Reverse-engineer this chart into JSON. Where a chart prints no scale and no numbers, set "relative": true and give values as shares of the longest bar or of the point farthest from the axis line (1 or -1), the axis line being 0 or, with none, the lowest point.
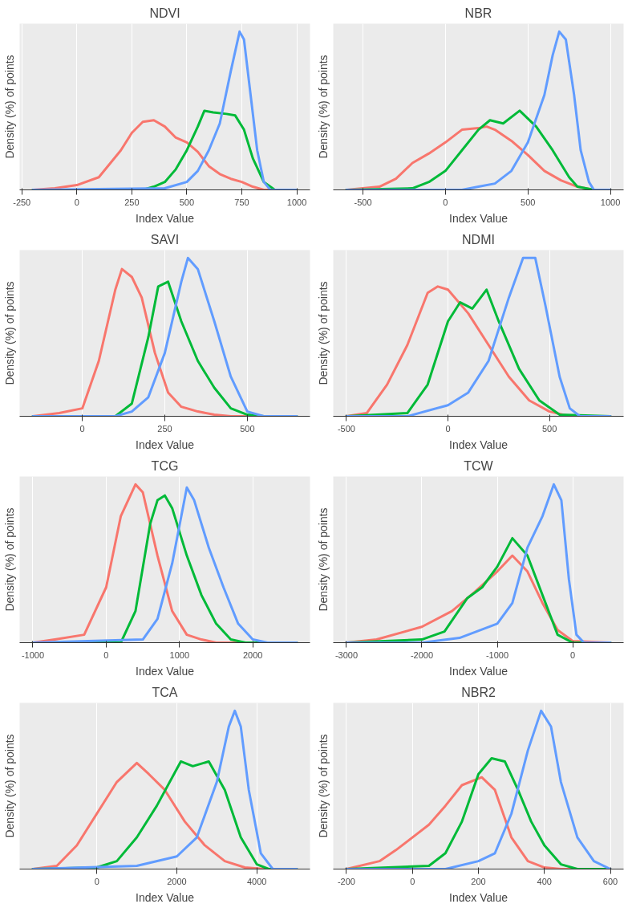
{
  "chart_data": [
    {
      "type": "line",
      "title": "NDVI",
      "xlabel": "Index Value",
      "ylabel": "Density (%) of points",
      "relative": true,
      "grid": "x",
      "xlim": [
        -260,
        1060
      ],
      "xticks": [
        -250,
        0,
        250,
        500,
        750,
        1000
      ],
      "series": [
        {
          "color": "#f8766d",
          "x": [
            -200,
            -100,
            0,
            100,
            200,
            250,
            300,
            350,
            400,
            450,
            500,
            550,
            600,
            650,
            700,
            750,
            800,
            850,
            1000
          ],
          "values": [
            0,
            0.01,
            0.03,
            0.08,
            0.25,
            0.36,
            0.43,
            0.44,
            0.4,
            0.33,
            0.3,
            0.24,
            0.15,
            0.1,
            0.07,
            0.05,
            0.02,
            0,
            0
          ]
        },
        {
          "color": "#00ba38",
          "x": [
            -200,
            300,
            350,
            400,
            450,
            500,
            550,
            580,
            620,
            680,
            720,
            760,
            800,
            850,
            900,
            1000
          ],
          "values": [
            0,
            0,
            0.02,
            0.05,
            0.13,
            0.25,
            0.4,
            0.5,
            0.49,
            0.48,
            0.47,
            0.38,
            0.2,
            0.05,
            0,
            0
          ]
        },
        {
          "color": "#619cff",
          "x": [
            -200,
            400,
            500,
            550,
            600,
            650,
            700,
            740,
            760,
            790,
            820,
            850,
            880,
            1000
          ],
          "values": [
            0,
            0.01,
            0.05,
            0.12,
            0.25,
            0.42,
            0.75,
            1.0,
            0.95,
            0.6,
            0.25,
            0.05,
            0,
            0
          ]
        }
      ]
    },
    {
      "type": "line",
      "title": "NBR",
      "xlabel": "Index Value",
      "ylabel": "Density (%) of points",
      "relative": true,
      "grid": "x",
      "xlim": [
        -680,
        1080
      ],
      "xticks": [
        -500,
        0,
        500,
        1000
      ],
      "series": [
        {
          "color": "#f8766d",
          "x": [
            -600,
            -400,
            -300,
            -200,
            -100,
            0,
            100,
            200,
            250,
            300,
            400,
            500,
            600,
            700,
            800,
            900,
            1000
          ],
          "values": [
            0,
            0.02,
            0.07,
            0.17,
            0.23,
            0.3,
            0.38,
            0.39,
            0.4,
            0.38,
            0.31,
            0.22,
            0.12,
            0.06,
            0.02,
            0,
            0
          ]
        },
        {
          "color": "#00ba38",
          "x": [
            -600,
            -200,
            -100,
            0,
            100,
            200,
            270,
            350,
            450,
            550,
            650,
            750,
            800,
            900,
            1000
          ],
          "values": [
            0,
            0.01,
            0.05,
            0.12,
            0.25,
            0.38,
            0.44,
            0.42,
            0.5,
            0.4,
            0.25,
            0.08,
            0.02,
            0,
            0
          ]
        },
        {
          "color": "#619cff",
          "x": [
            -600,
            100,
            200,
            300,
            400,
            500,
            600,
            650,
            690,
            730,
            780,
            820,
            870,
            900,
            1000
          ],
          "values": [
            0,
            0,
            0.02,
            0.04,
            0.12,
            0.3,
            0.6,
            0.85,
            1.0,
            0.95,
            0.6,
            0.25,
            0.05,
            0,
            0
          ]
        }
      ]
    },
    {
      "type": "line",
      "title": "SAVI",
      "xlabel": "Index Value",
      "ylabel": "Density (%) of points",
      "relative": true,
      "grid": "x",
      "xlim": [
        -190,
        690
      ],
      "xticks": [
        0,
        250,
        500
      ],
      "series": [
        {
          "color": "#f8766d",
          "x": [
            -150,
            -70,
            0,
            50,
            100,
            120,
            150,
            180,
            220,
            260,
            300,
            350,
            400,
            450,
            650
          ],
          "values": [
            0,
            0.02,
            0.05,
            0.35,
            0.8,
            0.93,
            0.88,
            0.75,
            0.4,
            0.15,
            0.06,
            0.03,
            0.01,
            0,
            0
          ]
        },
        {
          "color": "#00ba38",
          "x": [
            -150,
            100,
            150,
            200,
            230,
            260,
            300,
            350,
            400,
            450,
            500,
            550,
            650
          ],
          "values": [
            0,
            0,
            0.08,
            0.5,
            0.82,
            0.85,
            0.6,
            0.35,
            0.18,
            0.05,
            0.01,
            0,
            0
          ]
        },
        {
          "color": "#619cff",
          "x": [
            -150,
            100,
            150,
            200,
            250,
            300,
            320,
            350,
            400,
            450,
            500,
            550,
            650
          ],
          "values": [
            0,
            0,
            0.03,
            0.12,
            0.4,
            0.85,
            1.0,
            0.93,
            0.6,
            0.25,
            0.03,
            0,
            0
          ]
        }
      ]
    },
    {
      "type": "line",
      "title": "NDMI",
      "xlabel": "Index Value",
      "ylabel": "Density (%) of points",
      "relative": true,
      "grid": "x",
      "xlim": [
        -565,
        865
      ],
      "xticks": [
        -500,
        0,
        500
      ],
      "series": [
        {
          "color": "#f8766d",
          "x": [
            -500,
            -400,
            -300,
            -200,
            -100,
            -50,
            0,
            100,
            200,
            300,
            400,
            500,
            600,
            800
          ],
          "values": [
            0,
            0.02,
            0.2,
            0.45,
            0.78,
            0.82,
            0.8,
            0.65,
            0.45,
            0.25,
            0.1,
            0.03,
            0,
            0
          ]
        },
        {
          "color": "#00ba38",
          "x": [
            -500,
            -200,
            -100,
            0,
            60,
            120,
            190,
            250,
            350,
            450,
            550,
            800
          ],
          "values": [
            0,
            0.02,
            0.2,
            0.6,
            0.72,
            0.68,
            0.8,
            0.6,
            0.3,
            0.1,
            0.01,
            0
          ]
        },
        {
          "color": "#619cff",
          "x": [
            -500,
            -200,
            0,
            100,
            200,
            300,
            370,
            430,
            480,
            550,
            600,
            650,
            800
          ],
          "values": [
            0,
            0,
            0.07,
            0.15,
            0.35,
            0.75,
            1.0,
            1.0,
            0.7,
            0.25,
            0.05,
            0,
            0
          ]
        }
      ]
    },
    {
      "type": "line",
      "title": "TCG",
      "xlabel": "Index Value",
      "ylabel": "Density (%) of points",
      "relative": true,
      "grid": "x",
      "xlim": [
        -1180,
        2780
      ],
      "xticks": [
        -1000,
        0,
        1000,
        2000
      ],
      "series": [
        {
          "color": "#f8766d",
          "x": [
            -1000,
            -700,
            -300,
            0,
            200,
            400,
            500,
            700,
            900,
            1100,
            1300,
            1500,
            2600
          ],
          "values": [
            0,
            0.02,
            0.05,
            0.35,
            0.8,
            1.0,
            0.95,
            0.55,
            0.2,
            0.05,
            0.02,
            0,
            0
          ]
        },
        {
          "color": "#00ba38",
          "x": [
            -1000,
            200,
            400,
            600,
            700,
            800,
            900,
            1100,
            1300,
            1500,
            1700,
            1900,
            2600
          ],
          "values": [
            0,
            0,
            0.2,
            0.75,
            0.9,
            0.93,
            0.85,
            0.55,
            0.3,
            0.12,
            0.02,
            0,
            0
          ]
        },
        {
          "color": "#619cff",
          "x": [
            -1000,
            500,
            700,
            900,
            1100,
            1200,
            1400,
            1600,
            1800,
            2000,
            2200,
            2600
          ],
          "values": [
            0,
            0.02,
            0.15,
            0.5,
            0.98,
            0.9,
            0.6,
            0.35,
            0.12,
            0.02,
            0,
            0
          ]
        }
      ]
    },
    {
      "type": "line",
      "title": "TCW",
      "xlabel": "Index Value",
      "ylabel": "Density (%) of points",
      "relative": true,
      "grid": "x",
      "xlim": [
        -3175,
        675
      ],
      "xticks": [
        -3000,
        -2000,
        -1000,
        0
      ],
      "series": [
        {
          "color": "#f8766d",
          "x": [
            -3000,
            -2600,
            -2000,
            -1600,
            -1300,
            -1000,
            -800,
            -600,
            -400,
            -200,
            0,
            500
          ],
          "values": [
            0,
            0.02,
            0.1,
            0.2,
            0.32,
            0.45,
            0.55,
            0.45,
            0.25,
            0.08,
            0.01,
            0
          ]
        },
        {
          "color": "#00ba38",
          "x": [
            -3000,
            -2000,
            -1700,
            -1400,
            -1200,
            -1000,
            -800,
            -600,
            -400,
            -200,
            0,
            500
          ],
          "values": [
            0,
            0.02,
            0.07,
            0.28,
            0.35,
            0.48,
            0.66,
            0.55,
            0.3,
            0.05,
            0,
            0
          ]
        },
        {
          "color": "#619cff",
          "x": [
            -3000,
            -2000,
            -1500,
            -1000,
            -800,
            -600,
            -400,
            -250,
            -150,
            -50,
            50,
            150,
            500
          ],
          "values": [
            0,
            0,
            0.03,
            0.12,
            0.25,
            0.6,
            0.8,
            1.0,
            0.9,
            0.4,
            0.05,
            0,
            0
          ]
        }
      ]
    },
    {
      "type": "line",
      "title": "TCA",
      "xlabel": "Index Value",
      "ylabel": "Density (%) of points",
      "relative": true,
      "grid": "x",
      "xlim": [
        -1930,
        5330
      ],
      "xticks": [
        0,
        2000,
        4000
      ],
      "series": [
        {
          "color": "#f8766d",
          "x": [
            -1600,
            -1000,
            -500,
            0,
            500,
            1000,
            1300,
            1700,
            2200,
            2700,
            3200,
            3700,
            4200,
            5000
          ],
          "values": [
            0,
            0.02,
            0.15,
            0.35,
            0.55,
            0.67,
            0.6,
            0.5,
            0.3,
            0.15,
            0.05,
            0.01,
            0,
            0
          ]
        },
        {
          "color": "#00ba38",
          "x": [
            -1600,
            0,
            500,
            1000,
            1500,
            2100,
            2400,
            2800,
            3200,
            3600,
            4000,
            4300,
            5000
          ],
          "values": [
            0,
            0.01,
            0.05,
            0.2,
            0.4,
            0.68,
            0.65,
            0.68,
            0.5,
            0.2,
            0.03,
            0,
            0
          ]
        },
        {
          "color": "#619cff",
          "x": [
            -1600,
            1000,
            2000,
            2500,
            3000,
            3300,
            3450,
            3600,
            3800,
            4100,
            4400,
            5000
          ],
          "values": [
            0,
            0.02,
            0.08,
            0.2,
            0.55,
            0.9,
            1.0,
            0.9,
            0.5,
            0.1,
            0,
            0
          ]
        }
      ]
    },
    {
      "type": "line",
      "title": "NBR2",
      "xlabel": "Index Value",
      "ylabel": "Density (%) of points",
      "relative": true,
      "grid": "x",
      "xlim": [
        -240,
        640
      ],
      "xticks": [
        -200,
        0,
        200,
        400,
        600
      ],
      "series": [
        {
          "color": "#f8766d",
          "x": [
            -200,
            -100,
            -50,
            0,
            50,
            100,
            150,
            210,
            250,
            300,
            350,
            400,
            450,
            600
          ],
          "values": [
            0,
            0.05,
            0.12,
            0.2,
            0.28,
            0.4,
            0.53,
            0.58,
            0.5,
            0.2,
            0.05,
            0.01,
            0,
            0
          ]
        },
        {
          "color": "#00ba38",
          "x": [
            -200,
            50,
            100,
            150,
            200,
            240,
            280,
            320,
            360,
            400,
            450,
            500,
            600
          ],
          "values": [
            0,
            0.02,
            0.1,
            0.3,
            0.6,
            0.7,
            0.68,
            0.5,
            0.3,
            0.15,
            0.03,
            0,
            0
          ]
        },
        {
          "color": "#619cff",
          "x": [
            -200,
            100,
            200,
            250,
            300,
            350,
            390,
            420,
            450,
            500,
            550,
            600
          ],
          "values": [
            0,
            0,
            0.05,
            0.1,
            0.35,
            0.75,
            1.0,
            0.9,
            0.55,
            0.2,
            0.05,
            0
          ]
        }
      ]
    }
  ]
}
